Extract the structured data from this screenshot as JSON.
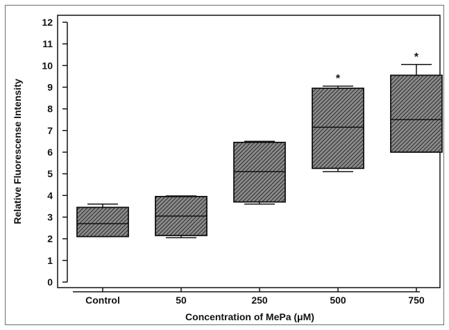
{
  "chart_data": {
    "type": "box",
    "xlabel": "Concentration of MePa (μM)",
    "ylabel": "Relative Fluorescense Intensity",
    "ylim": [
      0,
      12
    ],
    "yticks": [
      0,
      1,
      2,
      3,
      4,
      5,
      6,
      7,
      8,
      9,
      10,
      11,
      12
    ],
    "categories": [
      "Control",
      "50",
      "250",
      "500",
      "750"
    ],
    "boxes": [
      {
        "category": "Control",
        "whisker_low": 2.1,
        "q1": 2.1,
        "median": 2.7,
        "q3": 3.45,
        "whisker_high": 3.6,
        "marker": ""
      },
      {
        "category": "50",
        "whisker_low": 2.05,
        "q1": 2.15,
        "median": 3.05,
        "q3": 3.95,
        "whisker_high": 3.98,
        "marker": ""
      },
      {
        "category": "250",
        "whisker_low": 3.6,
        "q1": 3.7,
        "median": 5.1,
        "q3": 6.45,
        "whisker_high": 6.5,
        "marker": ""
      },
      {
        "category": "500",
        "whisker_low": 5.1,
        "q1": 5.25,
        "median": 7.15,
        "q3": 8.95,
        "whisker_high": 9.05,
        "marker": "*"
      },
      {
        "category": "750",
        "whisker_low": 6.0,
        "q1": 6.0,
        "median": 7.5,
        "q3": 9.55,
        "whisker_high": 10.05,
        "marker": "*"
      }
    ],
    "box_fill": "#6a6a6a",
    "hatch_color": "#2a2a2a",
    "line_color": "#111111"
  }
}
